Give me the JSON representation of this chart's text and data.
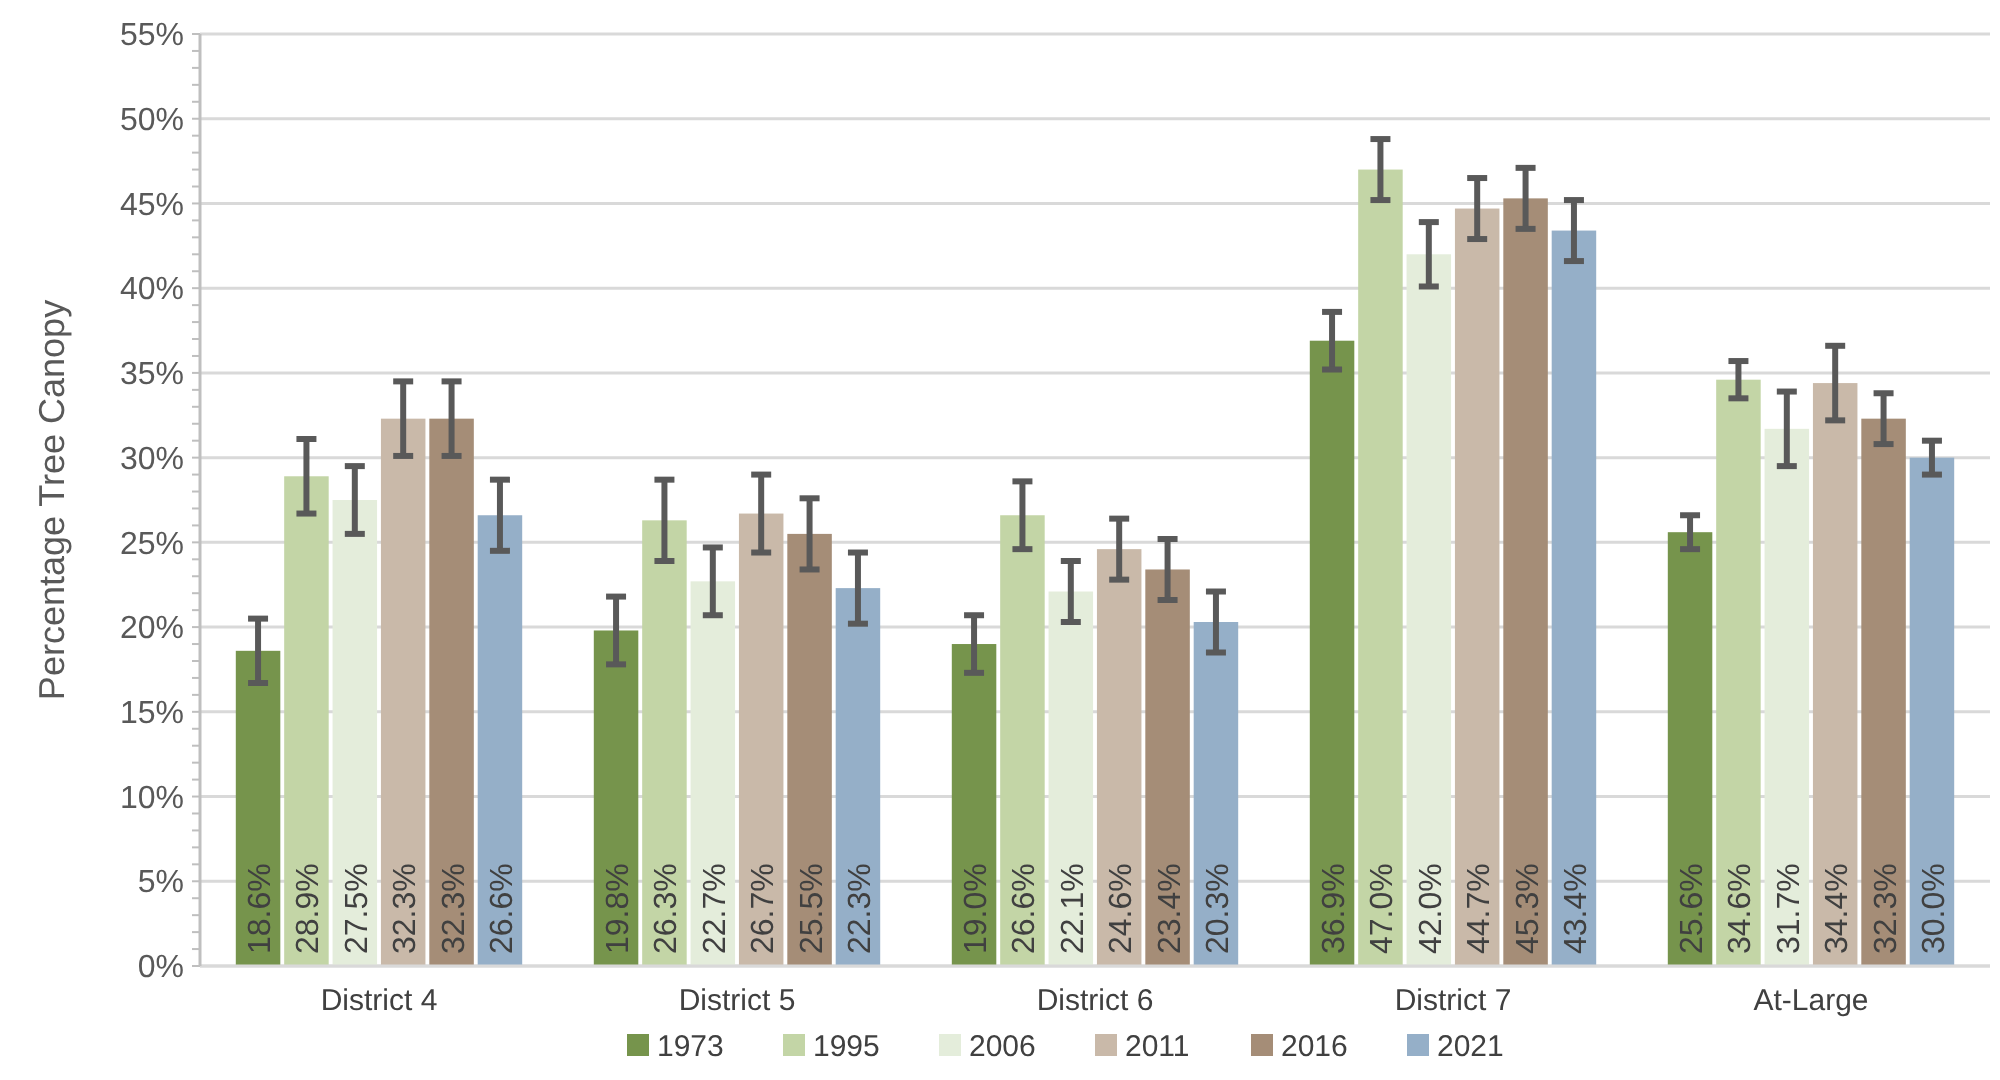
{
  "chart_data": {
    "type": "bar",
    "ylabel": "Percentage Tree Canopy",
    "categories": [
      "District 4",
      "District 5",
      "District 6",
      "District 7",
      "At-Large"
    ],
    "series": [
      {
        "name": "1973",
        "color": "#76944c",
        "values": [
          18.6,
          19.8,
          19.0,
          36.9,
          25.6
        ],
        "errors": [
          1.9,
          2.0,
          1.7,
          1.7,
          1.0
        ],
        "value_labels": [
          "18.6%",
          "19.8%",
          "19.0%",
          "36.9%",
          "25.6%"
        ]
      },
      {
        "name": "1995",
        "color": "#c3d5a6",
        "values": [
          28.9,
          26.3,
          26.6,
          47.0,
          34.6
        ],
        "errors": [
          2.2,
          2.4,
          2.0,
          1.8,
          1.1
        ],
        "value_labels": [
          "28.9%",
          "26.3%",
          "26.6%",
          "47.0%",
          "34.6%"
        ]
      },
      {
        "name": "2006",
        "color": "#e4eddb",
        "values": [
          27.5,
          22.7,
          22.1,
          42.0,
          31.7
        ],
        "errors": [
          2.0,
          2.0,
          1.8,
          1.9,
          2.2
        ],
        "value_labels": [
          "27.5%",
          "22.7%",
          "22.1%",
          "42.0%",
          "31.7%"
        ]
      },
      {
        "name": "2011",
        "color": "#c9b9a9",
        "values": [
          32.3,
          26.7,
          24.6,
          44.7,
          34.4
        ],
        "errors": [
          2.2,
          2.3,
          1.8,
          1.8,
          2.2
        ],
        "value_labels": [
          "32.3%",
          "26.7%",
          "24.6%",
          "44.7%",
          "34.4%"
        ]
      },
      {
        "name": "2016",
        "color": "#a58d77",
        "values": [
          32.3,
          25.5,
          23.4,
          45.3,
          32.3
        ],
        "errors": [
          2.2,
          2.1,
          1.8,
          1.8,
          1.5
        ],
        "value_labels": [
          "32.3%",
          "25.5%",
          "23.4%",
          "45.3%",
          "32.3%"
        ]
      },
      {
        "name": "2021",
        "color": "#95afc8",
        "values": [
          26.6,
          22.3,
          20.3,
          43.4,
          30.0
        ],
        "errors": [
          2.1,
          2.1,
          1.8,
          1.8,
          1.0
        ],
        "value_labels": [
          "26.6%",
          "22.3%",
          "20.3%",
          "43.4%",
          "30.0%"
        ]
      }
    ],
    "ylim": [
      0,
      55
    ],
    "yticks": [
      {
        "value": 0,
        "label": "0%"
      },
      {
        "value": 5,
        "label": "5%"
      },
      {
        "value": 10,
        "label": "10%"
      },
      {
        "value": 15,
        "label": "15%"
      },
      {
        "value": 20,
        "label": "20%"
      },
      {
        "value": 25,
        "label": "25%"
      },
      {
        "value": 30,
        "label": "30%"
      },
      {
        "value": 35,
        "label": "35%"
      },
      {
        "value": 40,
        "label": "40%"
      },
      {
        "value": 45,
        "label": "45%"
      },
      {
        "value": 50,
        "label": "50%"
      },
      {
        "value": 55,
        "label": "55%"
      }
    ],
    "grid": "y",
    "legend": "bottom"
  }
}
